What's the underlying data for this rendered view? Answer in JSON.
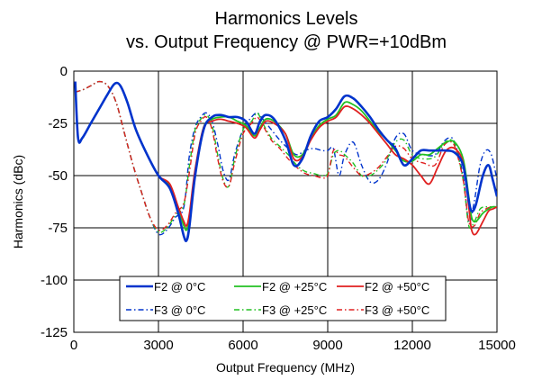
{
  "chart_data": {
    "type": "line",
    "title": "Harmonics Levels",
    "subtitle": "vs. Output Frequency @ PWR=+10dBm",
    "xlabel": "Output Frequency (MHz)",
    "ylabel": "Harmonics (dBc)",
    "xlim": [
      0,
      15000
    ],
    "ylim": [
      -125,
      0
    ],
    "xticks": [
      0,
      3000,
      6000,
      9000,
      12000,
      15000
    ],
    "yticks": [
      0,
      -25,
      -50,
      -75,
      -100,
      -125
    ],
    "grid": true,
    "legend_position": "bottom-center",
    "series": [
      {
        "name": "F2 @ 0°C",
        "color": "#0033cc",
        "dash": "solid",
        "width": 2.6,
        "x": [
          50,
          150,
          300,
          600,
          900,
          1200,
          1450,
          1650,
          1900,
          2200,
          2600,
          3000,
          3400,
          3700,
          3900,
          4000,
          4100,
          4300,
          4600,
          4900,
          5200,
          5500,
          5800,
          6100,
          6400,
          6600,
          6800,
          7100,
          7500,
          7800,
          8100,
          8400,
          8700,
          9000,
          9300,
          9600,
          9900,
          10200,
          10500,
          10800,
          11100,
          11400,
          11700,
          12000,
          12300,
          12600,
          12900,
          13200,
          13500,
          13800,
          14000,
          14100,
          14250,
          14500,
          14700,
          14850,
          15000
        ],
        "y": [
          -5,
          -32,
          -32,
          -25,
          -18,
          -11,
          -6,
          -7,
          -15,
          -28,
          -40,
          -50,
          -56,
          -68,
          -79,
          -81,
          -74,
          -50,
          -28,
          -22,
          -21,
          -22,
          -22,
          -24,
          -30,
          -24,
          -21,
          -23,
          -33,
          -45,
          -42,
          -31,
          -24,
          -22,
          -18,
          -12,
          -13,
          -17,
          -22,
          -28,
          -33,
          -37,
          -45,
          -42,
          -38,
          -38,
          -38,
          -38,
          -39,
          -45,
          -62,
          -67,
          -64,
          -50,
          -45,
          -52,
          -60
        ]
      },
      {
        "name": "F2 @ +25°C",
        "color": "#22c022",
        "dash": "solid",
        "width": 1.8,
        "x": [
          50,
          150,
          300,
          600,
          900,
          1200,
          1450,
          1650,
          1900,
          2200,
          2600,
          3000,
          3400,
          3700,
          3900,
          4000,
          4100,
          4300,
          4600,
          4900,
          5200,
          5500,
          5800,
          6100,
          6400,
          6600,
          6800,
          7100,
          7500,
          7800,
          8100,
          8400,
          8700,
          9000,
          9300,
          9600,
          9900,
          10200,
          10500,
          10800,
          11100,
          11400,
          11700,
          12000,
          12300,
          12600,
          12900,
          13200,
          13500,
          13800,
          14000,
          14100,
          14250,
          14500,
          14700,
          14850,
          15000
        ],
        "y": [
          -5,
          -32,
          -32,
          -25,
          -18,
          -11,
          -6,
          -7,
          -15,
          -28,
          -40,
          -50,
          -55,
          -66,
          -74,
          -76,
          -70,
          -48,
          -27,
          -23,
          -22,
          -22,
          -24,
          -26,
          -31,
          -27,
          -23,
          -24,
          -30,
          -40,
          -40,
          -32,
          -26,
          -23,
          -21,
          -15,
          -16,
          -19,
          -24,
          -29,
          -33,
          -38,
          -43,
          -43,
          -40,
          -40,
          -37,
          -34,
          -34,
          -42,
          -60,
          -70,
          -72,
          -68,
          -66,
          -65,
          -65
        ]
      },
      {
        "name": "F2 @ +50°C",
        "color": "#e02020",
        "dash": "solid",
        "width": 1.8,
        "x": [
          50,
          150,
          300,
          600,
          900,
          1200,
          1450,
          1650,
          1900,
          2200,
          2600,
          3000,
          3400,
          3700,
          3900,
          4000,
          4100,
          4300,
          4600,
          4900,
          5200,
          5500,
          5800,
          6100,
          6400,
          6600,
          6800,
          7100,
          7500,
          7800,
          8100,
          8400,
          8700,
          9000,
          9300,
          9600,
          9900,
          10200,
          10500,
          10800,
          11100,
          11400,
          11700,
          12000,
          12300,
          12600,
          12900,
          13200,
          13500,
          13800,
          14000,
          14100,
          14250,
          14500,
          14700,
          14850,
          15000
        ],
        "y": [
          -5,
          -32,
          -32,
          -25,
          -18,
          -11,
          -6,
          -7,
          -15,
          -28,
          -40,
          -50,
          -54,
          -65,
          -72,
          -74,
          -68,
          -47,
          -27,
          -24,
          -23,
          -24,
          -25,
          -27,
          -32,
          -28,
          -24,
          -25,
          -30,
          -42,
          -41,
          -33,
          -27,
          -24,
          -22,
          -17,
          -18,
          -21,
          -25,
          -30,
          -35,
          -40,
          -42,
          -45,
          -50,
          -54,
          -46,
          -38,
          -37,
          -44,
          -65,
          -76,
          -78,
          -72,
          -67,
          -66,
          -65
        ]
      },
      {
        "name": "F3 @ 0°C",
        "color": "#0033cc",
        "dash": "6,3,1.5,3",
        "width": 1.4,
        "x": [
          50,
          300,
          600,
          900,
          1200,
          1500,
          1800,
          2100,
          2400,
          2700,
          3000,
          3300,
          3600,
          3900,
          4100,
          4300,
          4500,
          4700,
          4900,
          5100,
          5300,
          5500,
          5700,
          6000,
          6300,
          6500,
          6700,
          7000,
          7300,
          7600,
          7900,
          8200,
          8500,
          8800,
          9000,
          9200,
          9400,
          9600,
          9900,
          10200,
          10500,
          10800,
          11100,
          11400,
          11700,
          12000,
          12400,
          12800,
          13100,
          13300,
          13500,
          13800,
          14000,
          14200,
          14400,
          14600,
          14800,
          15000
        ],
        "y": [
          -10,
          -9,
          -7,
          -5,
          -7,
          -15,
          -30,
          -45,
          -58,
          -70,
          -78,
          -76,
          -70,
          -65,
          -40,
          -27,
          -22,
          -20,
          -24,
          -35,
          -48,
          -52,
          -40,
          -28,
          -22,
          -20,
          -23,
          -28,
          -33,
          -37,
          -40,
          -38,
          -37,
          -38,
          -38,
          -37,
          -50,
          -40,
          -34,
          -45,
          -53,
          -52,
          -44,
          -32,
          -30,
          -38,
          -40,
          -40,
          -34,
          -32,
          -34,
          -50,
          -72,
          -62,
          -45,
          -38,
          -40,
          -52
        ]
      },
      {
        "name": "F3 @ +25°C",
        "color": "#22c022",
        "dash": "6,3,1.5,3",
        "width": 1.4,
        "x": [
          50,
          300,
          600,
          900,
          1200,
          1500,
          1800,
          2100,
          2400,
          2700,
          3000,
          3300,
          3600,
          3900,
          4100,
          4300,
          4500,
          4700,
          4900,
          5100,
          5300,
          5500,
          5700,
          6000,
          6300,
          6500,
          6700,
          7000,
          7300,
          7600,
          7900,
          8200,
          8500,
          8800,
          9000,
          9200,
          9400,
          9600,
          9900,
          10200,
          10500,
          10800,
          11100,
          11400,
          11700,
          12000,
          12400,
          12800,
          13100,
          13300,
          13500,
          13800,
          14000,
          14200,
          14400,
          14600,
          14800,
          15000
        ],
        "y": [
          -10,
          -9,
          -7,
          -5,
          -7,
          -15,
          -30,
          -45,
          -58,
          -70,
          -77,
          -75,
          -69,
          -64,
          -45,
          -28,
          -23,
          -21,
          -26,
          -40,
          -52,
          -55,
          -42,
          -28,
          -24,
          -20,
          -25,
          -32,
          -36,
          -40,
          -45,
          -48,
          -49,
          -50,
          -49,
          -40,
          -38,
          -40,
          -44,
          -50,
          -50,
          -47,
          -42,
          -34,
          -33,
          -40,
          -42,
          -41,
          -35,
          -33,
          -35,
          -52,
          -74,
          -72,
          -66,
          -65,
          -65,
          -65
        ]
      },
      {
        "name": "F3 @ +50°C",
        "color": "#e02020",
        "dash": "6,3,1.5,3",
        "width": 1.4,
        "x": [
          50,
          300,
          600,
          900,
          1200,
          1500,
          1800,
          2100,
          2400,
          2700,
          3000,
          3300,
          3600,
          3900,
          4100,
          4300,
          4500,
          4700,
          4900,
          5100,
          5300,
          5500,
          5700,
          6000,
          6300,
          6500,
          6700,
          7000,
          7300,
          7600,
          7900,
          8200,
          8500,
          8800,
          9000,
          9200,
          9400,
          9600,
          9900,
          10200,
          10500,
          10800,
          11100,
          11400,
          11700,
          12000,
          12400,
          12800,
          13100,
          13300,
          13500,
          13800,
          14000,
          14200,
          14400,
          14600,
          14800,
          15000
        ],
        "y": [
          -10,
          -9,
          -7,
          -5,
          -7,
          -15,
          -30,
          -45,
          -58,
          -70,
          -76,
          -74,
          -68,
          -63,
          -48,
          -30,
          -24,
          -22,
          -28,
          -42,
          -53,
          -55,
          -44,
          -30,
          -25,
          -22,
          -26,
          -33,
          -37,
          -42,
          -46,
          -49,
          -50,
          -51,
          -50,
          -38,
          -40,
          -41,
          -46,
          -50,
          -49,
          -46,
          -41,
          -36,
          -37,
          -42,
          -44,
          -45,
          -36,
          -34,
          -36,
          -52,
          -72,
          -74,
          -68,
          -66,
          -65,
          -65
        ]
      }
    ]
  }
}
